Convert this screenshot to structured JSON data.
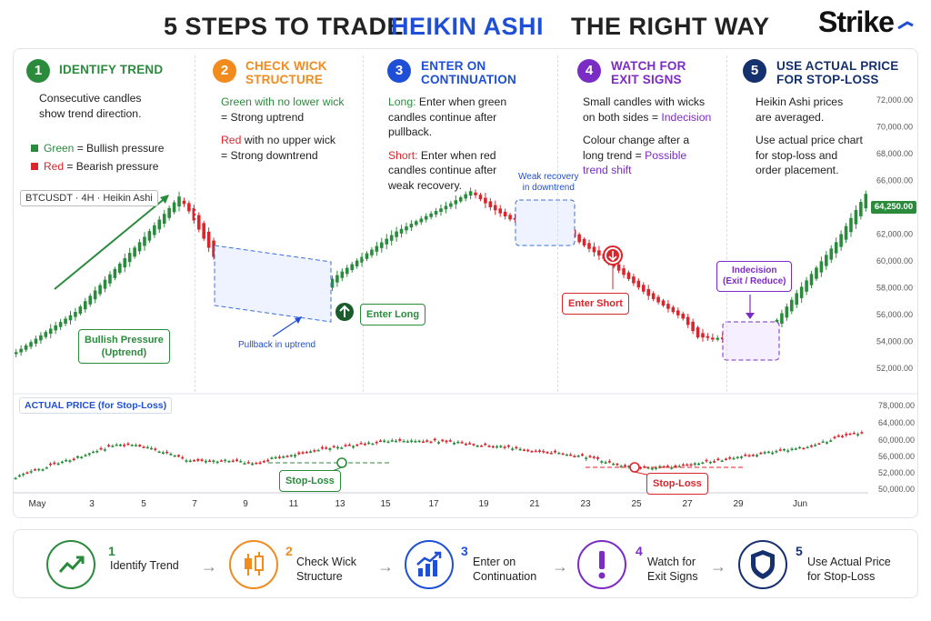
{
  "title": {
    "part1": "5 STEPS TO TRADE",
    "part2": "HEIKIN ASHI",
    "part3": "THE RIGHT WAY",
    "highlight_color": "#1e4fd6"
  },
  "brand": {
    "name": "Strike"
  },
  "steps": [
    {
      "num": "1",
      "title": [
        "IDENTIFY TREND"
      ],
      "color": "#2a8b3c",
      "lines": [
        "Consecutive candles",
        "show trend direction."
      ],
      "legend": [
        {
          "word": "Green",
          "rest": " = Bullish pressure",
          "color": "#2a8b3c"
        },
        {
          "word": "Red",
          "rest": " = Bearish pressure",
          "color": "#d9262c"
        }
      ]
    },
    {
      "num": "2",
      "title": [
        "CHECK WICK",
        "STRUCTURE"
      ],
      "color": "#f28b1e",
      "a1": "Green with no lower wick",
      "a2": "= Strong uptrend",
      "b1": "Red",
      "b1rest": " with no upper wick",
      "b2": "= Strong downtrend"
    },
    {
      "num": "3",
      "title": [
        "ENTER ON",
        "CONTINUATION"
      ],
      "color": "#1e4fd6",
      "long_label": "Long:",
      "long_text": [
        " Enter when green",
        "candles continue after",
        "pullback."
      ],
      "short_label": "Short:",
      "short_text": [
        " Enter when red",
        "candles continue after",
        "weak recovery."
      ]
    },
    {
      "num": "4",
      "title": [
        "WATCH FOR",
        "EXIT SIGNS"
      ],
      "color": "#7b2cc4",
      "l1": "Small candles with wicks",
      "l2": "on both sides = ",
      "l2b": "Indecision",
      "l3": "Colour change after a",
      "l4": "long trend = ",
      "l4b": "Possible",
      "l5": "trend shift"
    },
    {
      "num": "5",
      "title": [
        "USE ACTUAL PRICE",
        "FOR STOP-LOSS"
      ],
      "color": "#14306e",
      "lines1": [
        "Heikin Ashi prices",
        "are averaged."
      ],
      "lines2": [
        "Use actual price chart",
        "for stop-loss and",
        "order placement."
      ]
    }
  ],
  "chart_labels": {
    "ticker": "BTCUSDT · 4H · Heikin Ashi",
    "bullish_box": [
      "Bullish Pressure",
      "(Uptrend)"
    ],
    "pullback": "Pullback in uptrend",
    "enter_long": "Enter Long",
    "weak_recovery": [
      "Weak recovery",
      "in downtrend"
    ],
    "enter_short": "Enter Short",
    "indecision": [
      "Indecision",
      "(Exit / Reduce)"
    ],
    "price_tag": "64,250.00",
    "actual_price": "ACTUAL PRICE (for Stop-Loss)",
    "stop_loss": "Stop-Loss"
  },
  "chart_data": [
    {
      "type": "candlestick",
      "title": "BTCUSDT · 4H · Heikin Ashi",
      "ylim": [
        51000,
        73000
      ],
      "yticks": [
        "72,000.00",
        "70,000.00",
        "68,000.00",
        "66,000.00",
        "64,000.00",
        "62,000.00",
        "60,000.00",
        "58,000.00",
        "56,000.00",
        "54,000.00",
        "52,000.00"
      ],
      "last_price": 64250,
      "anchors": [
        [
          0,
          53200
        ],
        [
          12,
          56200
        ],
        [
          26,
          61800
        ],
        [
          33,
          64800
        ],
        [
          35,
          63700
        ],
        [
          40,
          60300
        ],
        [
          45,
          58400
        ],
        [
          54,
          57200
        ],
        [
          59,
          56200
        ],
        [
          63,
          58400
        ],
        [
          77,
          62200
        ],
        [
          88,
          64300
        ],
        [
          92,
          65200
        ],
        [
          96,
          64000
        ],
        [
          100,
          63100
        ],
        [
          106,
          63600
        ],
        [
          109,
          63200
        ],
        [
          114,
          61400
        ],
        [
          120,
          59900
        ],
        [
          128,
          57400
        ],
        [
          135,
          55700
        ],
        [
          138,
          54300
        ],
        [
          148,
          54200
        ],
        [
          152,
          54600
        ],
        [
          158,
          57600
        ],
        [
          166,
          61400
        ],
        [
          172,
          65000
        ]
      ]
    },
    {
      "type": "candlestick",
      "title": "ACTUAL PRICE (for Stop-Loss)",
      "ylim": [
        49000,
        79000
      ],
      "yticks": [
        "78,000.00",
        "64,000.00",
        "60,000.00",
        "56,000.00",
        "52,000.00",
        "50,000.00"
      ],
      "x_ticks": [
        "May",
        "3",
        "5",
        "7",
        "9",
        "11",
        "13",
        "15",
        "17",
        "19",
        "21",
        "23",
        "25",
        "27",
        "29",
        "Jun"
      ],
      "anchors": [
        [
          0,
          51800
        ],
        [
          20,
          62000
        ],
        [
          26,
          65200
        ],
        [
          30,
          64800
        ],
        [
          35,
          63700
        ],
        [
          45,
          58300
        ],
        [
          55,
          58500
        ],
        [
          63,
          57200
        ],
        [
          66,
          59300
        ],
        [
          80,
          63500
        ],
        [
          95,
          66500
        ],
        [
          110,
          66600
        ],
        [
          125,
          64200
        ],
        [
          145,
          60600
        ],
        [
          160,
          55400
        ],
        [
          172,
          56300
        ],
        [
          190,
          61000
        ],
        [
          205,
          64400
        ],
        [
          215,
          69800
        ],
        [
          218,
          69500
        ]
      ]
    }
  ],
  "bottom": [
    {
      "num": "1",
      "label": [
        "Identify Trend"
      ],
      "color": "#2a8b3c"
    },
    {
      "num": "2",
      "label": [
        "Check Wick",
        "Structure"
      ],
      "color": "#f28b1e"
    },
    {
      "num": "3",
      "label": [
        "Enter on",
        "Continuation"
      ],
      "color": "#1e4fd6"
    },
    {
      "num": "4",
      "label": [
        "Watch for",
        "Exit Signs"
      ],
      "color": "#7b2cc4"
    },
    {
      "num": "5",
      "label": [
        "Use Actual Price",
        "for Stop-Loss"
      ],
      "color": "#14306e"
    }
  ],
  "icons": [
    "trend-up-icon",
    "candle-icon",
    "bar-chart-icon",
    "exclamation-icon",
    "shield-icon"
  ],
  "colors": {
    "green": "#2a8b3c",
    "red": "#d9262c",
    "blue": "#1e4fd6",
    "purple": "#7b2cc4",
    "navy": "#14306e",
    "orange": "#f28b1e"
  }
}
